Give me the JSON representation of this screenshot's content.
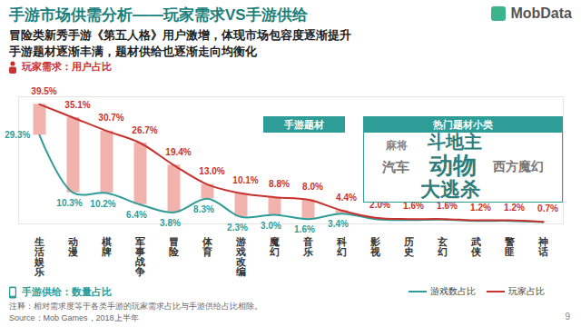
{
  "chart_data": {
    "type": "line",
    "title": "手游市场供需分析——玩家需求VS手游供给",
    "subtitle": [
      "冒险类新秀手游《第五人格》用户激增，体现市场包容度逐渐提升",
      "手游题材逐渐丰满，题材供给也逐渐走向均衡化"
    ],
    "logo": "MobData",
    "page_number": "9",
    "categories": [
      "生活娱乐",
      "动漫",
      "棋牌",
      "军事战争",
      "冒险",
      "体育",
      "游戏改编",
      "魔幻",
      "音乐",
      "科幻",
      "影视",
      "历史",
      "玄幻",
      "武侠",
      "警匪",
      "神话"
    ],
    "series": [
      {
        "name": "游戏数占比",
        "color": "#2e9c97",
        "values": [
          29.3,
          10.3,
          10.2,
          6.4,
          3.8,
          8.3,
          2.3,
          3.0,
          1.6,
          3.4,
          1.6,
          1.3,
          1.4,
          1.0,
          1.0,
          0.6
        ],
        "value_labels": [
          "29.3%",
          "10.3%",
          "10.2%",
          "6.4%",
          "3.8%",
          "8.3%",
          "2.3%",
          "3.0%",
          "1.6%",
          "3.4%",
          null,
          null,
          null,
          null,
          null,
          null
        ]
      },
      {
        "name": "玩家占比",
        "color": "#c8322e",
        "values": [
          39.5,
          35.1,
          30.7,
          26.7,
          19.4,
          13.0,
          10.1,
          8.8,
          8.0,
          4.4,
          2.0,
          1.6,
          1.6,
          1.2,
          1.2,
          0.7
        ],
        "value_labels": [
          "39.5%",
          "35.1%",
          "30.7%",
          "26.7%",
          "19.4%",
          "13.0%",
          "10.1%",
          "8.8%",
          "8.0%",
          "4.4%",
          "2.0%",
          "1.6%",
          "1.6%",
          "1.2%",
          "1.2%",
          "0.7%"
        ]
      }
    ],
    "ylim": [
      0,
      42
    ],
    "yticks": [],
    "tick_labels": "x",
    "data_labels": true,
    "grid": false,
    "legend": "bottom-right",
    "annotations": {
      "demand_label": "玩家需求：用户占比",
      "supply_label": "手游供给：数量占比",
      "theme_label": "手游题材"
    },
    "word_cloud": {
      "title": "热门题材小类",
      "words": [
        "斗地主",
        "动物",
        "大逃杀",
        "西方魔幻",
        "汽车",
        "麻将"
      ]
    },
    "note": "注释：相对需求度等于各类手游的玩家需求占比与手游供给占比相除。",
    "source": "Source：Mob Games，2018上半年"
  }
}
